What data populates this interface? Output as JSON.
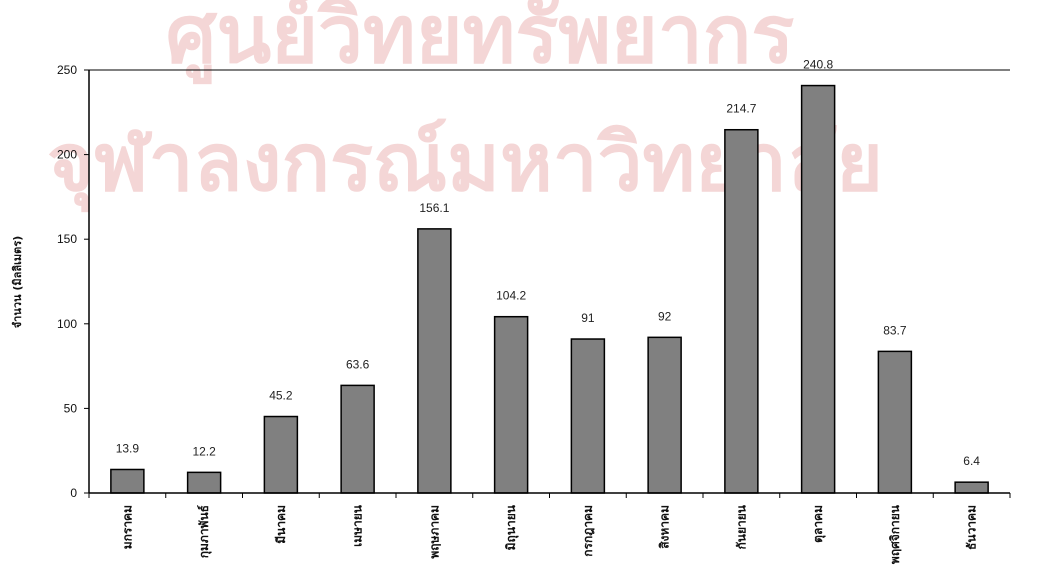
{
  "watermark": {
    "line1": "ศูนย์วิทยทรัพยากร",
    "line2": "จุฬาลงกรณ์มหาวิทยาลัย"
  },
  "chart_data": {
    "type": "bar",
    "title": "",
    "xlabel": "",
    "ylabel": "จำนวน (มิลลิเมตร)",
    "ylim": [
      0,
      250
    ],
    "yticks": [
      "0",
      "50",
      "100",
      "150",
      "200",
      "250"
    ],
    "grid": false,
    "categories": [
      "มกราคม",
      "กุมภาพันธ์",
      "มีนาคม",
      "เมษายน",
      "พฤษภาคม",
      "มิถุนายน",
      "กรกฎาคม",
      "สิงหาคม",
      "กันยายน",
      "ตุลาคม",
      "พฤศจิกายน",
      "ธันวาคม"
    ],
    "values": [
      13.9,
      12.2,
      45.2,
      63.6,
      156.1,
      104.2,
      91,
      92,
      214.7,
      240.8,
      83.7,
      6.4
    ],
    "data_labels": [
      "13.9",
      "12.2",
      "45.2",
      "63.6",
      "156.1",
      "104.2",
      "91",
      "92",
      "214.7",
      "240.8",
      "83.7",
      "6.4"
    ],
    "bar_color": "#808080",
    "bar_edge_color": "#000000"
  }
}
